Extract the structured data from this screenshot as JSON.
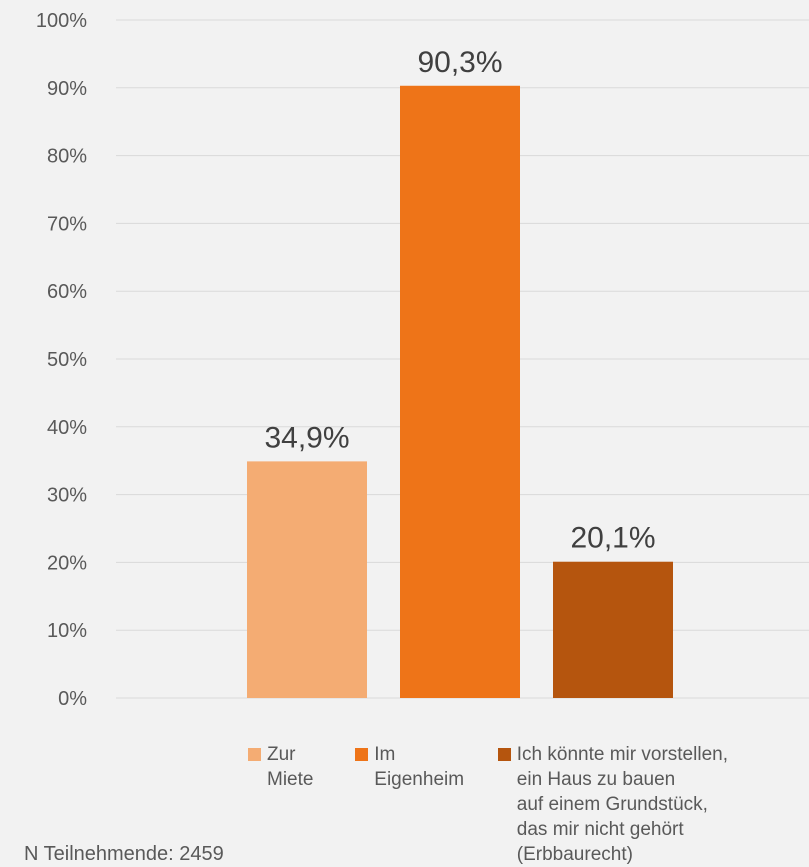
{
  "chart_data": {
    "type": "bar",
    "series": [
      {
        "name": "Zur Miete",
        "value": 34.9,
        "label": "34,9%",
        "color": "#f4ac73"
      },
      {
        "name": "Im Eigenheim",
        "value": 90.3,
        "label": "90,3%",
        "color": "#ee7418"
      },
      {
        "name": "Ich könnte mir vorstellen,\nein Haus zu bauen\nauf einem Grundstück,\ndas mir nicht gehört (Erbbaurecht)",
        "value": 20.1,
        "label": "20,1%",
        "color": "#b5550e"
      }
    ],
    "ylim": [
      0,
      100
    ],
    "yticks": [
      "0%",
      "10%",
      "20%",
      "30%",
      "40%",
      "50%",
      "60%",
      "70%",
      "80%",
      "90%",
      "100%"
    ],
    "grid": true,
    "legend_position": "bottom"
  },
  "footnote": "N Teilnehmende: 2459"
}
